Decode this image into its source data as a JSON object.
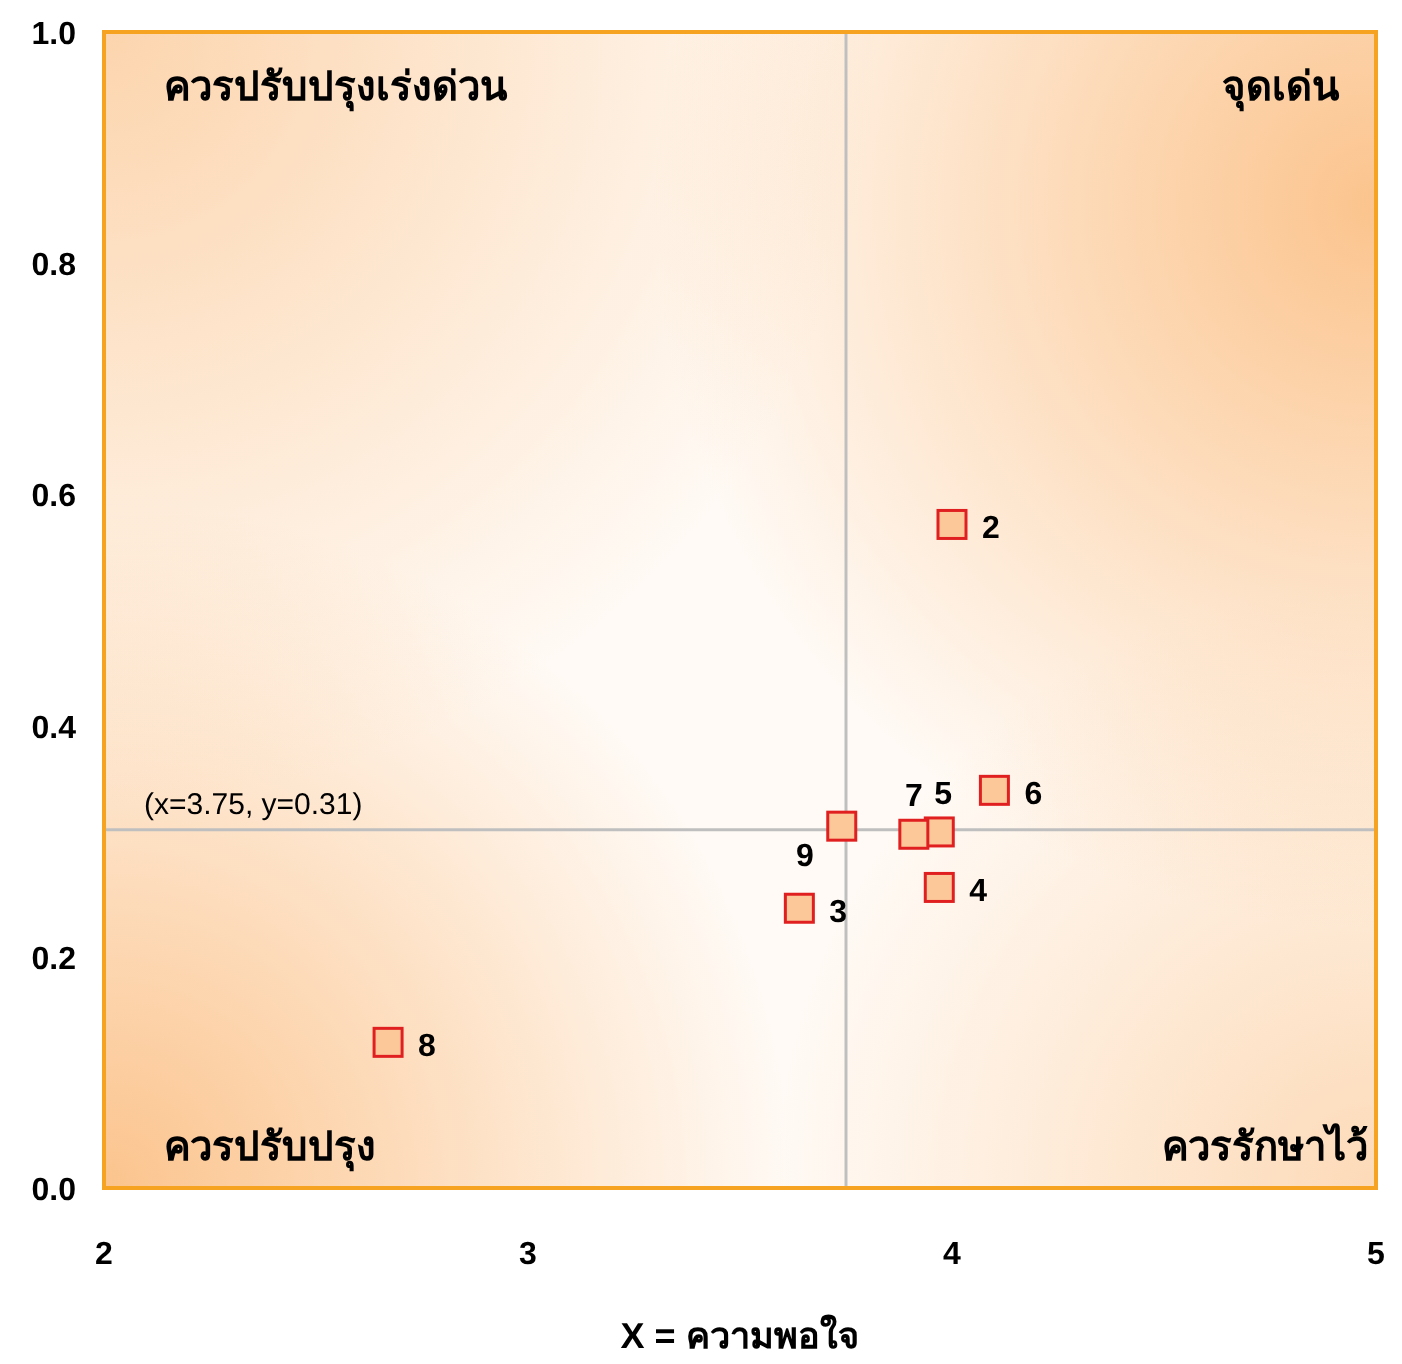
{
  "chart_data": {
    "type": "scatter",
    "xlabel": "X = ความพอใจ",
    "marker": "square",
    "grid": false,
    "xlim": [
      2,
      5
    ],
    "ylim": [
      0,
      1
    ],
    "xticks": [
      2,
      3,
      4,
      5
    ],
    "yticks": [
      {
        "value": 0,
        "label": "0.0"
      },
      {
        "value": 0.2,
        "label": "0.2"
      },
      {
        "value": 0.4,
        "label": "0.4"
      },
      {
        "value": 0.6,
        "label": "0.6"
      },
      {
        "value": 0.8,
        "label": "0.8"
      },
      {
        "value": 1,
        "label": "1.0"
      }
    ],
    "series": [
      {
        "color": "#fcc89a",
        "x": [
          4.0,
          4.1,
          3.97,
          3.91,
          3.74,
          3.97,
          3.64,
          2.67
        ],
        "values": [
          0.574,
          0.344,
          0.308,
          0.306,
          0.313,
          0.26,
          0.242,
          0.126
        ]
      }
    ],
    "ref_lines": [
      {
        "axis": "x",
        "value": 3.75,
        "color": "#bfbfbf"
      },
      {
        "axis": "y",
        "value": 0.31,
        "color": "#bfbfbf",
        "label": "(x=3.75, y=0.31)"
      }
    ],
    "annotations": [
      {
        "text": "2",
        "x": 4.0,
        "y": 0.574
      },
      {
        "text": "6",
        "x": 4.1,
        "y": 0.344
      },
      {
        "text": "5",
        "x": 3.97,
        "y": 0.308
      },
      {
        "text": "7",
        "x": 3.91,
        "y": 0.306
      },
      {
        "text": "9",
        "x": 3.74,
        "y": 0.313
      },
      {
        "text": "4",
        "x": 3.97,
        "y": 0.26
      },
      {
        "text": "3",
        "x": 3.64,
        "y": 0.242
      },
      {
        "text": "8",
        "x": 2.67,
        "y": 0.126
      },
      "ควรปรับปรุงเร่งด่วน",
      "จุดเด่น",
      "ควรปรับปรุง",
      "ควรรักษาไว้"
    ]
  }
}
